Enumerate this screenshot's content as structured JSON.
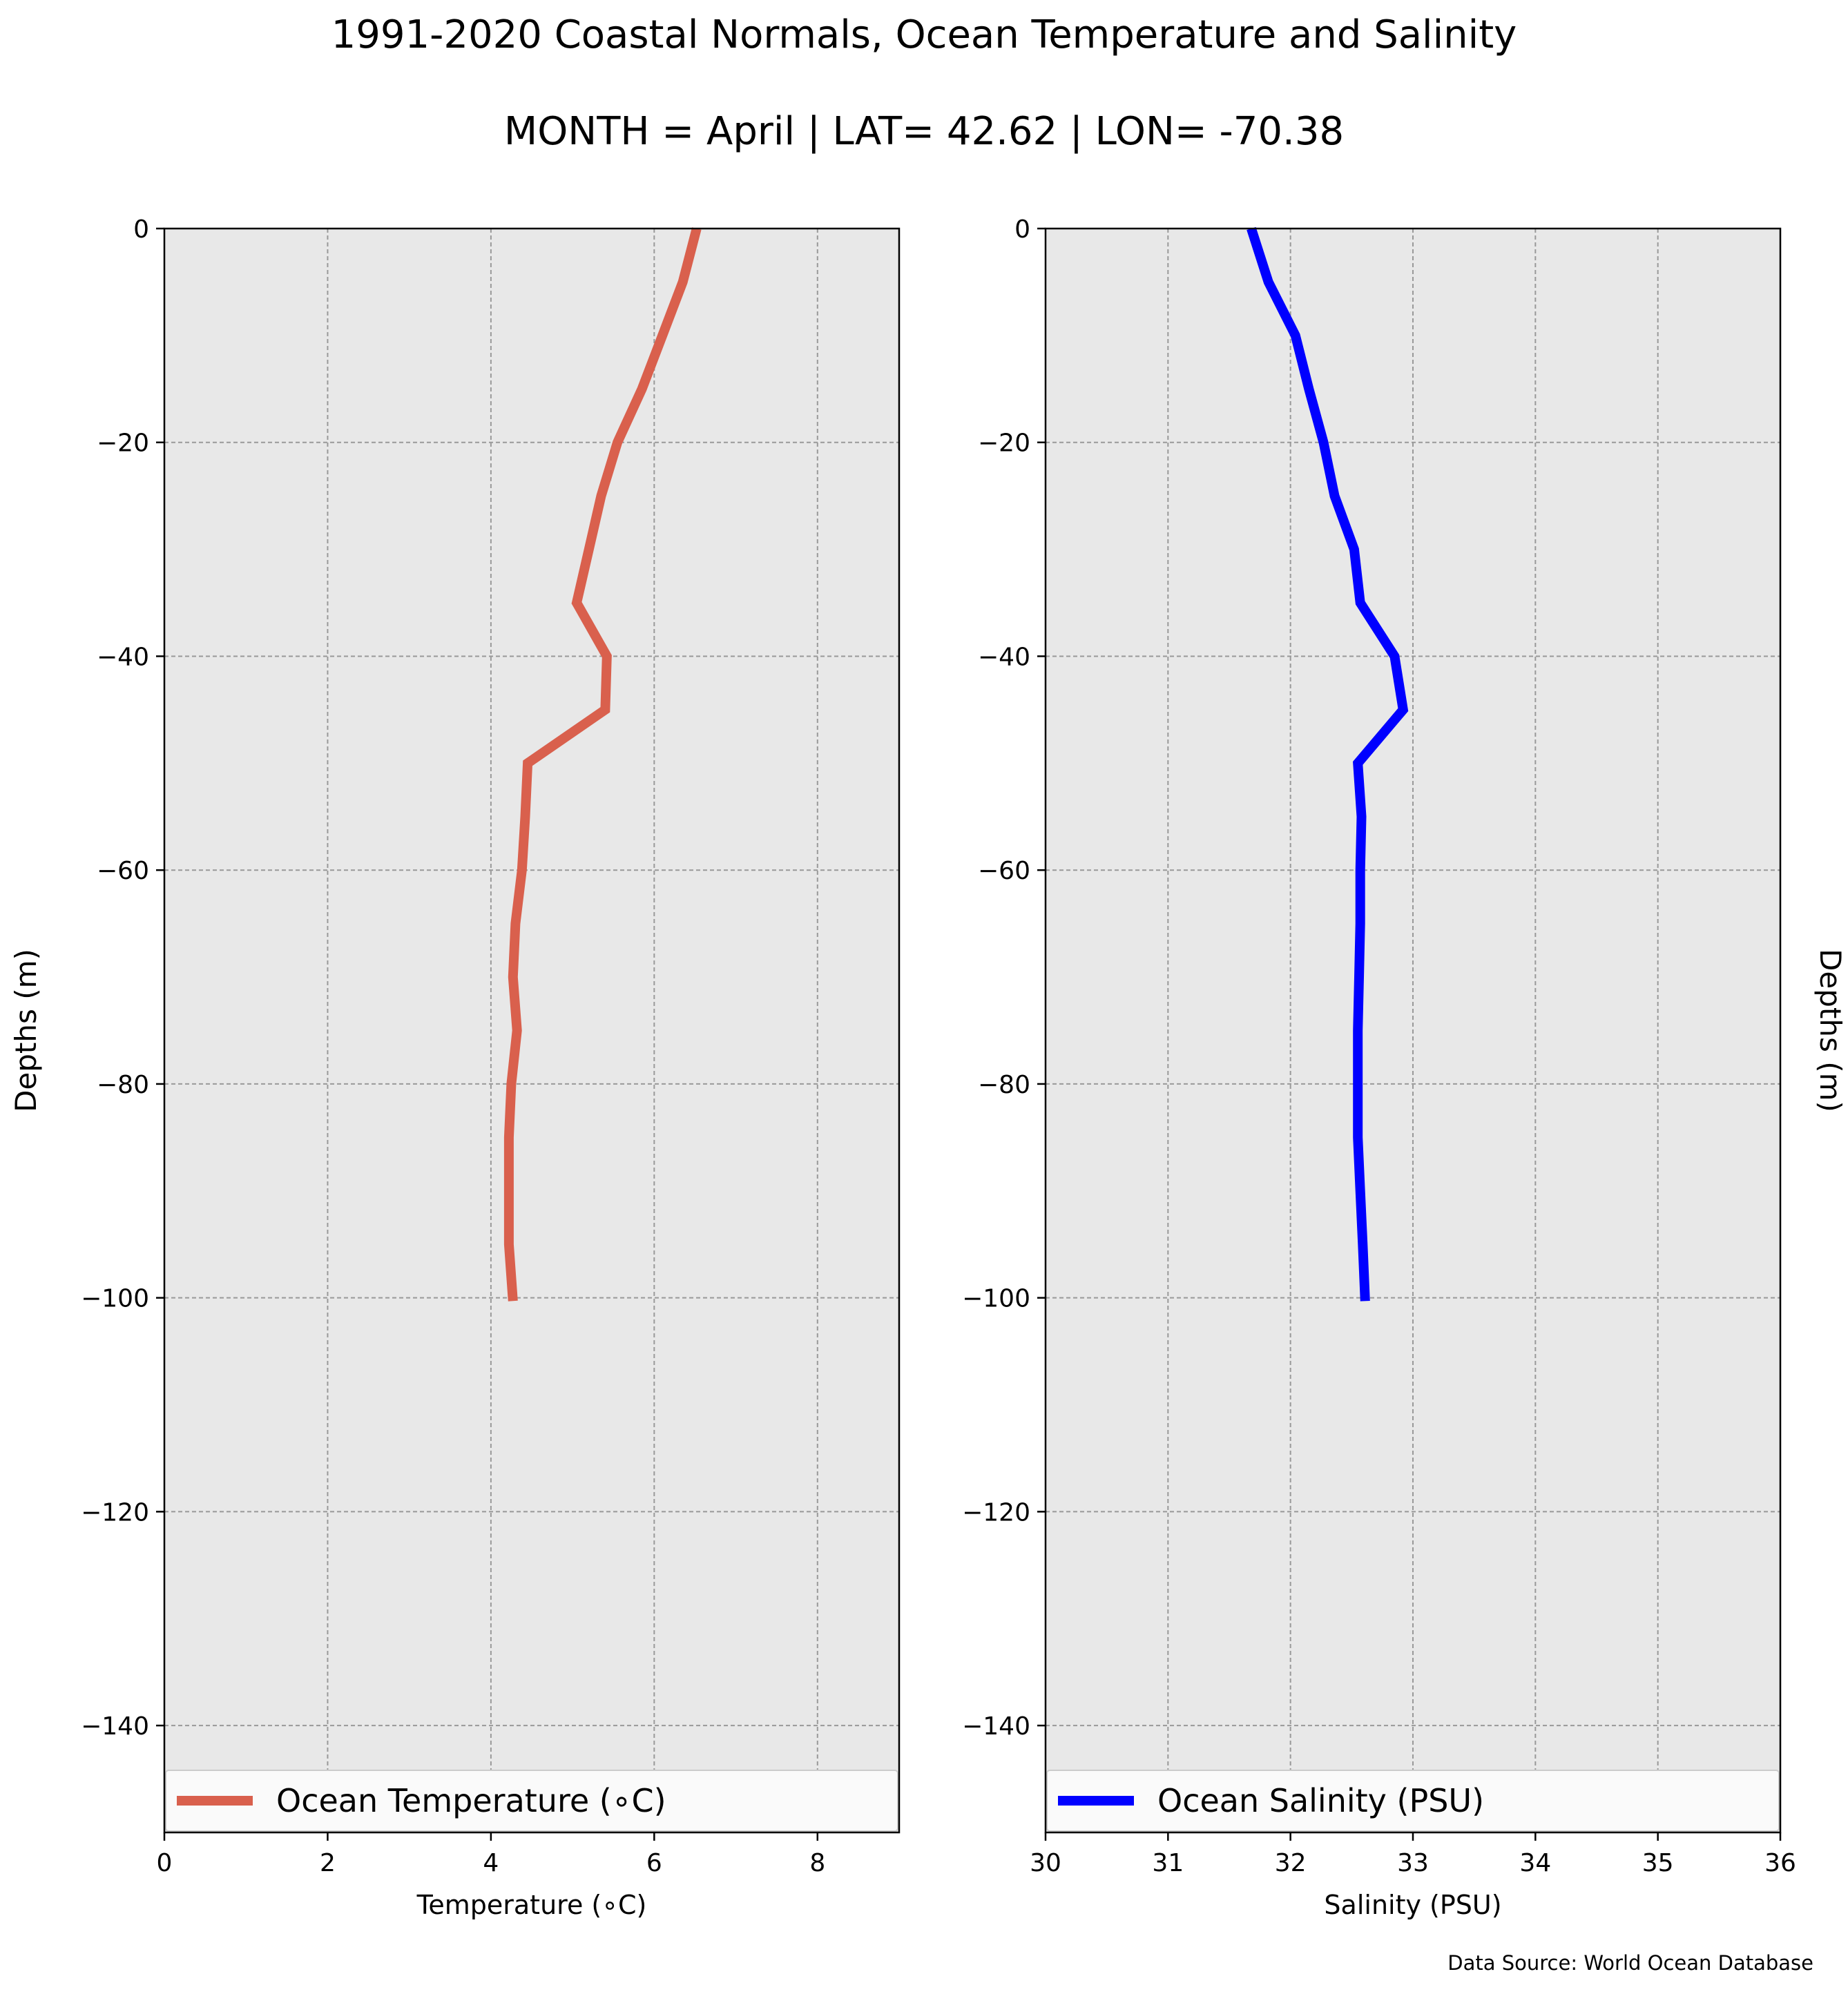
{
  "header": {
    "title": "1991-2020 Coastal Normals, Ocean Temperature and Salinity",
    "subtitle": "MONTH = April | LAT= 42.62 | LON= -70.38"
  },
  "footer": {
    "source": "Data Source: World Ocean Database"
  },
  "colors": {
    "temperature": "#d9604d",
    "salinity": "#0000ff",
    "plot_bg": "#e8e8e8",
    "grid": "#999999"
  },
  "chart_data": [
    {
      "type": "line",
      "title": "",
      "xlabel": "Temperature (∘C)",
      "ylabel": "Depths (m)",
      "xlim": [
        0,
        9
      ],
      "ylim": [
        -150,
        0
      ],
      "xticks": [
        0,
        2,
        4,
        6,
        8
      ],
      "yticks": [
        0,
        -20,
        -40,
        -60,
        -80,
        -100,
        -120,
        -140
      ],
      "xtick_labels": [
        "0",
        "2",
        "4",
        "6",
        "8"
      ],
      "ytick_labels": [
        "0",
        "−20",
        "−40",
        "−60",
        "−80",
        "−100",
        "−120",
        "−140"
      ],
      "grid": true,
      "legend_position": "bottom",
      "series": [
        {
          "name": "Ocean Temperature (∘C)",
          "x": [
            6.52,
            6.35,
            6.1,
            5.85,
            5.55,
            5.35,
            5.2,
            5.05,
            5.42,
            5.4,
            4.45,
            4.42,
            4.38,
            4.3,
            4.27,
            4.32,
            4.25,
            4.22,
            4.22,
            4.22,
            4.27
          ],
          "y": [
            0,
            -5,
            -10,
            -15,
            -20,
            -25,
            -30,
            -35,
            -40,
            -45,
            -50,
            -55,
            -60,
            -65,
            -70,
            -75,
            -80,
            -85,
            -90,
            -95,
            -100.3
          ]
        }
      ]
    },
    {
      "type": "line",
      "title": "",
      "xlabel": "Salinity (PSU)",
      "ylabel": "Depths (m)",
      "xlim": [
        30,
        36
      ],
      "ylim": [
        -150,
        0
      ],
      "xticks": [
        30,
        31,
        32,
        33,
        34,
        35,
        36
      ],
      "yticks": [
        0,
        -20,
        -40,
        -60,
        -80,
        -100,
        -120,
        -140
      ],
      "xtick_labels": [
        "30",
        "31",
        "32",
        "33",
        "34",
        "35",
        "36"
      ],
      "ytick_labels": [
        "0",
        "−20",
        "−40",
        "−60",
        "−80",
        "−100",
        "−120",
        "−140"
      ],
      "grid": true,
      "legend_position": "bottom",
      "series": [
        {
          "name": "Ocean Salinity (PSU)",
          "x": [
            31.68,
            31.82,
            32.04,
            32.15,
            32.27,
            32.36,
            32.52,
            32.57,
            32.85,
            32.92,
            32.55,
            32.58,
            32.57,
            32.57,
            32.56,
            32.55,
            32.55,
            32.55,
            32.57,
            32.59,
            32.61
          ],
          "y": [
            0,
            -5,
            -10,
            -15,
            -20,
            -25,
            -30,
            -35,
            -40,
            -45,
            -50,
            -55,
            -60,
            -65,
            -70,
            -75,
            -80,
            -85,
            -90,
            -95,
            -100.3
          ]
        }
      ]
    }
  ]
}
